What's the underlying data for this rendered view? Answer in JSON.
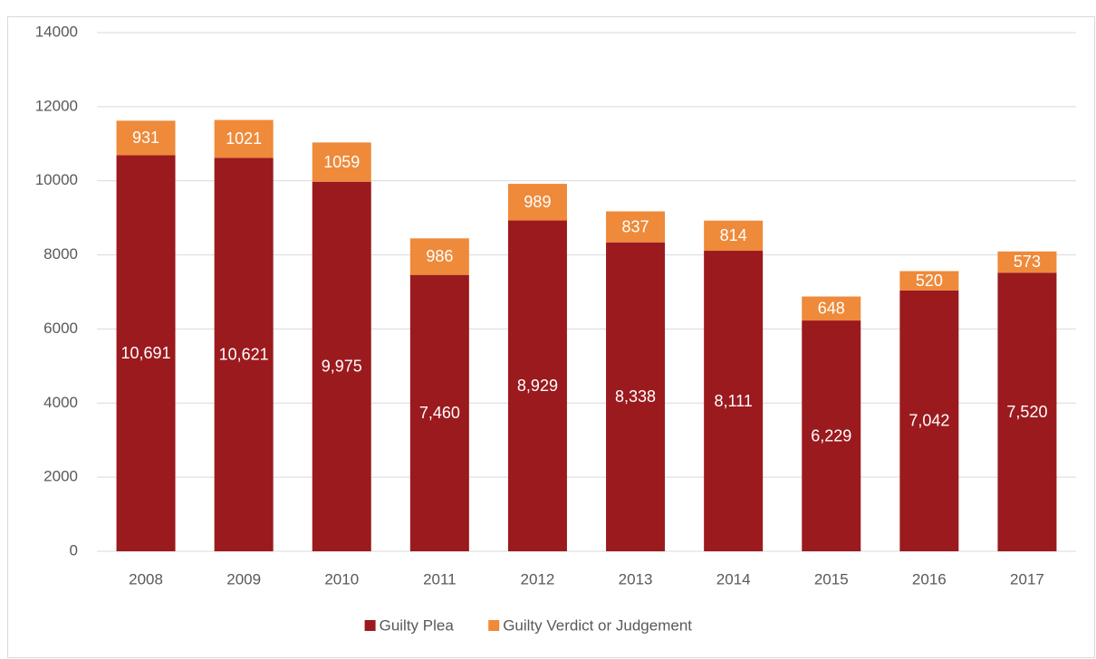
{
  "chart_data": {
    "type": "stacked_bar",
    "categories": [
      "2008",
      "2009",
      "2010",
      "2011",
      "2012",
      "2013",
      "2014",
      "2015",
      "2016",
      "2017"
    ],
    "series": [
      {
        "name": "Guilty Plea",
        "color": "#9b1a1e",
        "values": [
          10691,
          10621,
          9975,
          7460,
          8929,
          8338,
          8111,
          6229,
          7042,
          7520
        ],
        "value_labels": [
          "10,691",
          "10,621",
          "9,975",
          "7,460",
          "8,929",
          "8,338",
          "8,111",
          "6,229",
          "7,042",
          "7,520"
        ]
      },
      {
        "name": "Guilty Verdict or Judgement",
        "color": "#ee8a3a",
        "values": [
          931,
          1021,
          1059,
          986,
          989,
          837,
          814,
          648,
          520,
          573
        ]
      }
    ],
    "ylim": [
      0,
      14000
    ],
    "yticks": [
      0,
      2000,
      4000,
      6000,
      8000,
      10000,
      12000,
      14000
    ],
    "grid": true,
    "legend": "bottom"
  }
}
